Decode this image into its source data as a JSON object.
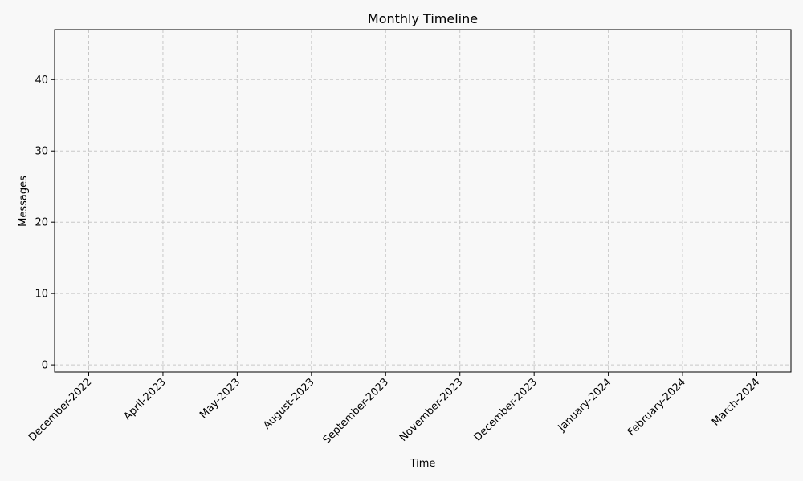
{
  "chart_data": {
    "type": "line",
    "title": "Monthly Timeline",
    "xlabel": "Time",
    "ylabel": "Messages",
    "categories": [
      "December-2022",
      "April-2023",
      "May-2023",
      "August-2023",
      "September-2023",
      "November-2023",
      "December-2023",
      "January-2024",
      "February-2024",
      "March-2024"
    ],
    "yticks": [
      0,
      10,
      20,
      30,
      40
    ],
    "ylim": [
      -1,
      47
    ],
    "series": [],
    "grid": true,
    "colors": {
      "background": "#f8f8f8",
      "grid": "#c8c8c8",
      "axis": "#000000"
    }
  }
}
